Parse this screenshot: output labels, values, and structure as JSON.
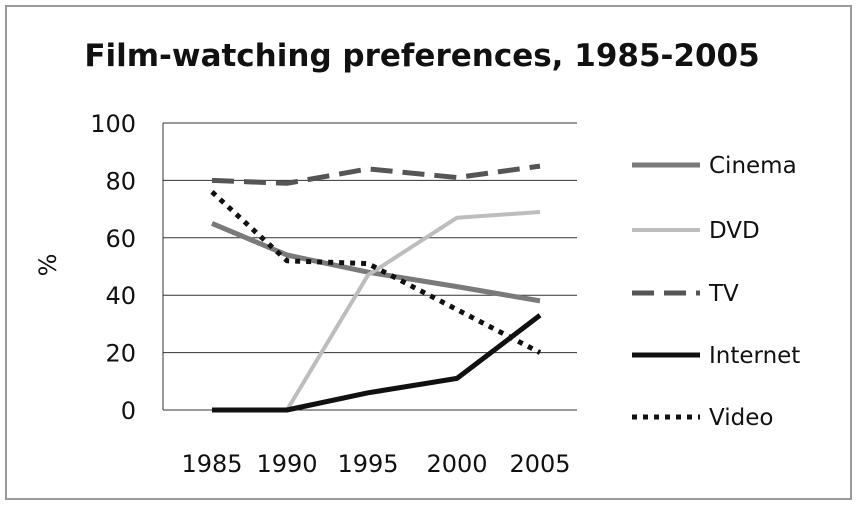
{
  "chart_data": {
    "type": "line",
    "title": "Film-watching preferences, 1985-2005",
    "xlabel": "",
    "ylabel": "%",
    "x": [
      "1985",
      "1990",
      "1995",
      "2000",
      "2005"
    ],
    "ylim": [
      0,
      100
    ],
    "yticks": [
      "0",
      "20",
      "40",
      "60",
      "80",
      "100"
    ],
    "grid": true,
    "legend": "right",
    "series": [
      {
        "name": "Cinema",
        "values": [
          65,
          54,
          48,
          43,
          38
        ],
        "color": "#7a7a7a",
        "style": "solid",
        "width": 5
      },
      {
        "name": "DVD",
        "values": [
          0,
          0,
          47,
          67,
          69
        ],
        "color": "#bdbdbd",
        "style": "solid",
        "width": 4
      },
      {
        "name": "TV",
        "values": [
          80,
          79,
          84,
          81,
          85
        ],
        "color": "#555555",
        "style": "dashed",
        "width": 5
      },
      {
        "name": "Internet",
        "values": [
          0,
          0,
          6,
          11,
          33
        ],
        "color": "#111111",
        "style": "solid",
        "width": 5
      },
      {
        "name": "Video",
        "values": [
          76,
          52,
          51,
          35,
          20
        ],
        "color": "#111111",
        "style": "dotted",
        "width": 5
      }
    ]
  }
}
